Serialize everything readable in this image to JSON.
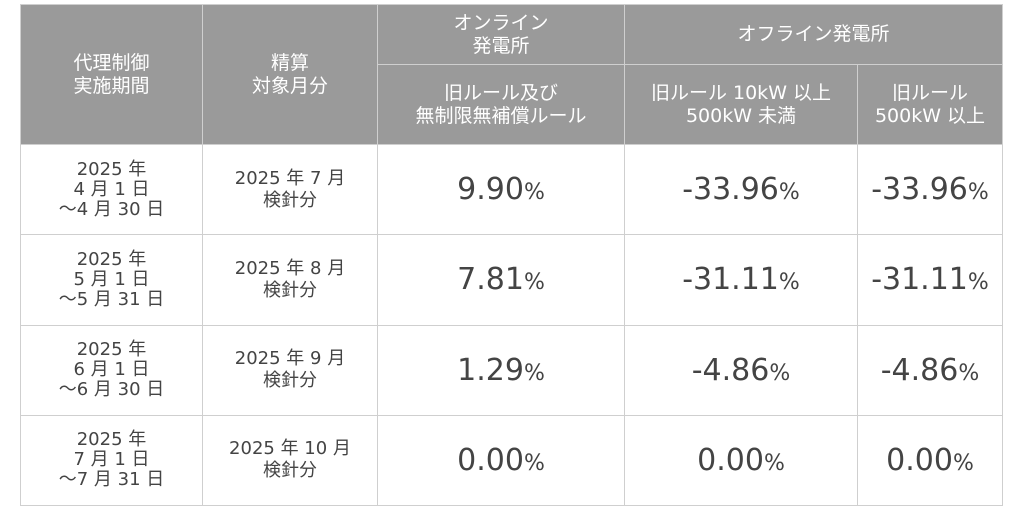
{
  "header": {
    "col1": [
      "代理制御",
      "実施期間"
    ],
    "col2": [
      "精算",
      "対象月分"
    ],
    "online_group": [
      "オンライン",
      "発電所"
    ],
    "offline_group": "オフライン発電所",
    "col3": [
      "旧ルール及び",
      "無制限無補償ルール"
    ],
    "col4": [
      "旧ルール 10kW 以上",
      "500kW 未満"
    ],
    "col5": [
      "旧ルール",
      "500kW 以上"
    ]
  },
  "rows": [
    {
      "period": [
        "2025 年",
        "4 月 1 日",
        "～4 月 30 日"
      ],
      "month": [
        "2025 年 7 月",
        "検針分"
      ],
      "online": "9.90",
      "offline_small": "-33.96",
      "offline_large": "-33.96"
    },
    {
      "period": [
        "2025 年",
        "5 月 1 日",
        "～5 月 31 日"
      ],
      "month": [
        "2025 年 8 月",
        "検針分"
      ],
      "online": "7.81",
      "offline_small": "-31.11",
      "offline_large": "-31.11"
    },
    {
      "period": [
        "2025 年",
        "6 月 1 日",
        "～6 月 30 日"
      ],
      "month": [
        "2025 年 9 月",
        "検針分"
      ],
      "online": "1.29",
      "offline_small": "-4.86",
      "offline_large": "-4.86"
    },
    {
      "period": [
        "2025 年",
        "7 月 1 日",
        "～7 月 31 日"
      ],
      "month": [
        "2025 年 10 月",
        "検針分"
      ],
      "online": "0.00",
      "offline_small": "0.00",
      "offline_large": "0.00"
    }
  ],
  "unit": "%",
  "colors": {
    "header_bg": "#9a9a9a",
    "header_text": "#ffffff",
    "cell_text": "#444444",
    "border": "#cfcfcf"
  }
}
